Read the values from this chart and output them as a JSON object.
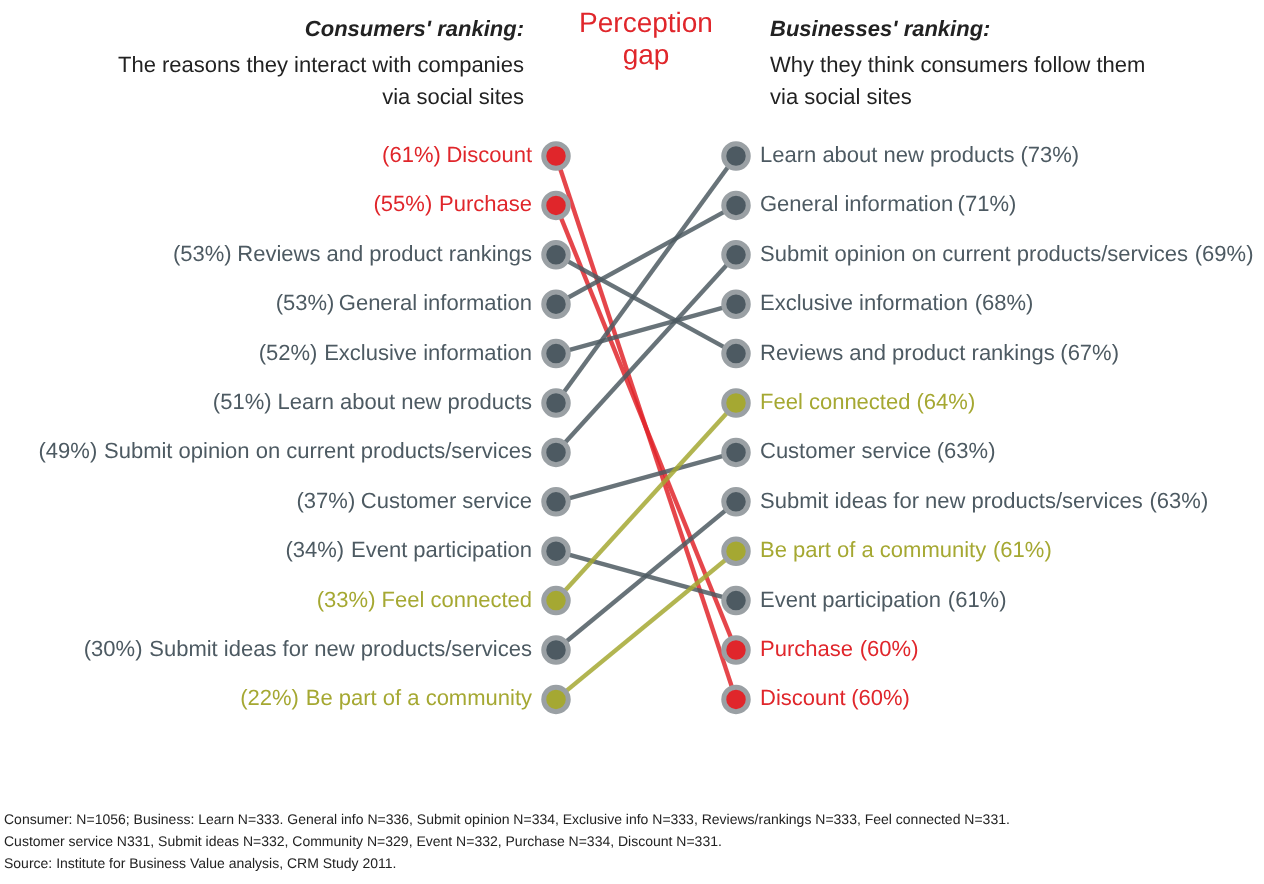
{
  "chart_data": [
    {
      "type": "other",
      "title": "Perception gap",
      "categories": [
        "Discount",
        "Purchase",
        "Reviews and product rankings",
        "General information",
        "Exclusive information",
        "Learn about new products",
        "Submit opinion on current products/services",
        "Customer service",
        "Event participation",
        "Feel connected",
        "Submit ideas for new products/services",
        "Be part of a community"
      ],
      "colors": [
        "#e0262b",
        "#e0262b",
        "#4d5a62",
        "#4d5a62",
        "#4d5a62",
        "#4d5a62",
        "#4d5a62",
        "#4d5a62",
        "#4d5a62",
        "#a5a832",
        "#4d5a62",
        "#a5a832"
      ],
      "values": [
        61,
        55,
        53,
        53,
        52,
        51,
        49,
        37,
        34,
        33,
        30,
        22
      ],
      "value_labels": [
        "(61%)",
        "(55%)",
        "(53%)",
        "(53%)",
        "(52%)",
        "(51%)",
        "(49%)",
        "(37%)",
        "(34%)",
        "(33%)",
        "(30%)",
        "(22%)"
      ],
      "annotations": [
        "Consumers' ranking:",
        "The reasons they interact with companies\nvia social sites",
        "Consumer: N=1056; Business: Learn N=333. General info N=336, Submit opinion N=334, Exclusive info N=333, Reviews/rankings N=333, Feel connected N=331.",
        "Customer service N331, Submit ideas N=332, Community N=329, Event N=332, Purchase N=334, Discount N=331.",
        "Source: Institute for Business Value analysis, CRM Study 2011."
      ]
    },
    {
      "type": "other",
      "categories": [
        "Learn about new products",
        "General information",
        "Submit opinion on current products/services",
        "Exclusive information",
        "Reviews and product rankings",
        "Feel connected",
        "Customer service",
        "Submit ideas for new products/services",
        "Be part of a community",
        "Event participation",
        "Purchase",
        "Discount"
      ],
      "colors": [
        "#4d5a62",
        "#4d5a62",
        "#4d5a62",
        "#4d5a62",
        "#4d5a62",
        "#a5a832",
        "#4d5a62",
        "#4d5a62",
        "#a5a832",
        "#4d5a62",
        "#e0262b",
        "#e0262b"
      ],
      "values": [
        73,
        71,
        69,
        68,
        67,
        64,
        63,
        63,
        61,
        61,
        60,
        60
      ],
      "value_labels": [
        "(73%)",
        "(71%)",
        "(69%)",
        "(68%)",
        "(67%)",
        "(64%)",
        "(63%)",
        "(63%)",
        "(61%)",
        "(61%)",
        "(60%)",
        "(60%)"
      ],
      "annotations": [
        "Businesses' ranking:",
        "Why they think consumers follow them\nvia social sites"
      ]
    }
  ]
}
